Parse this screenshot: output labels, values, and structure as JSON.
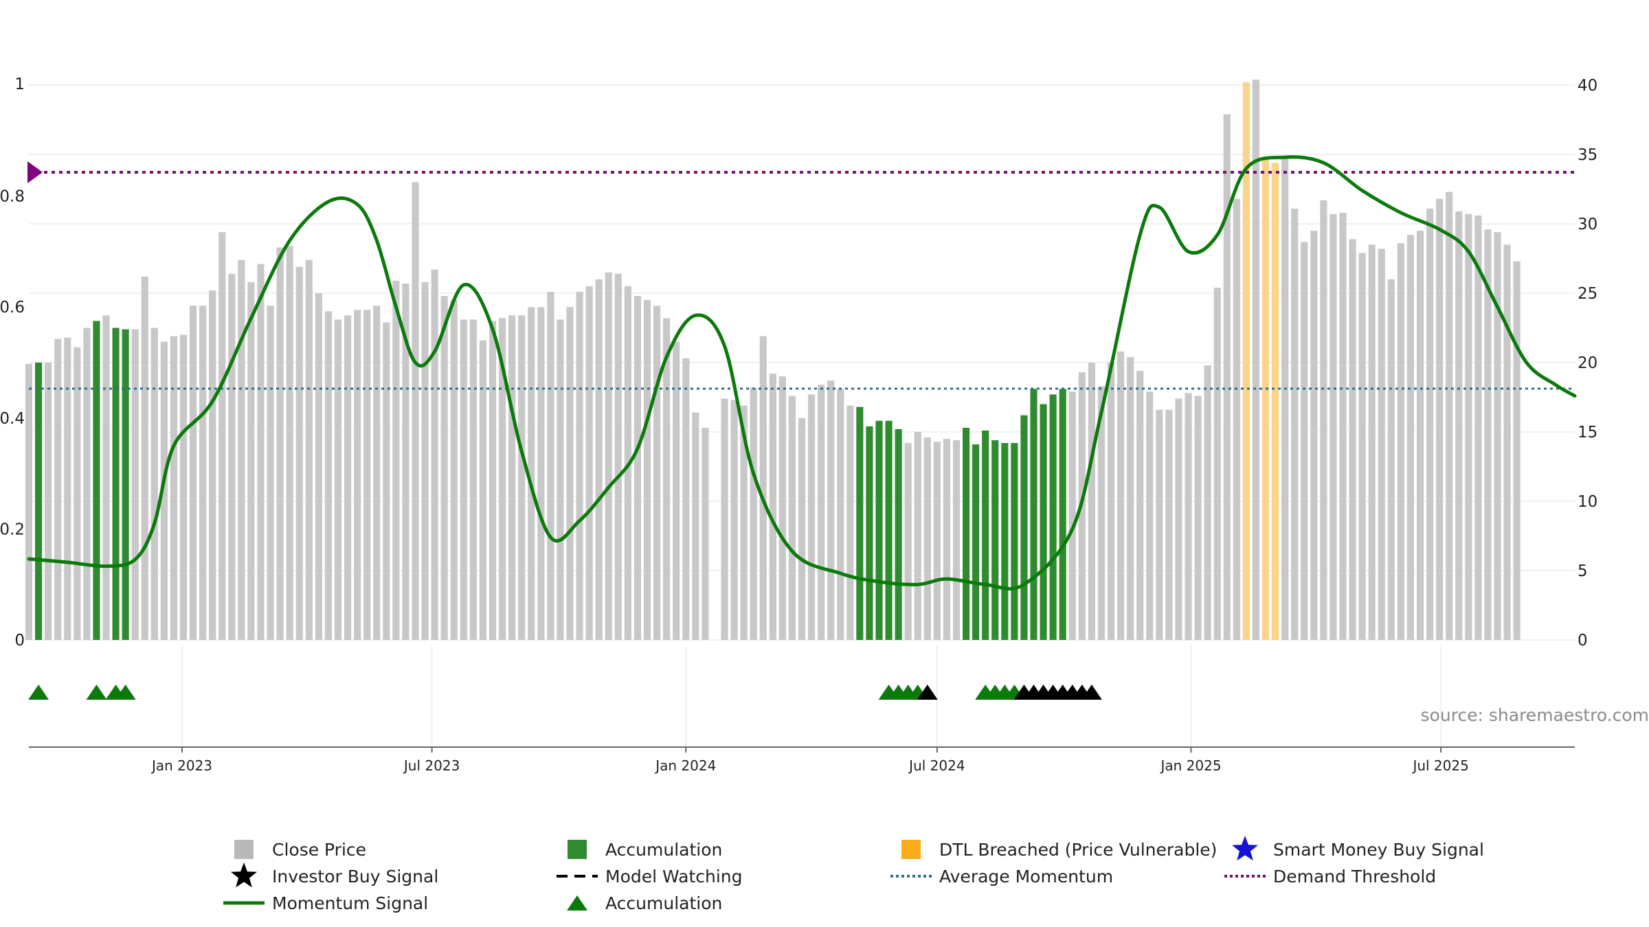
{
  "chart_data": {
    "type": "bar",
    "source_text": "source: sharemaestro.com",
    "y_left": {
      "range": [
        0,
        1
      ],
      "ticks": [
        0,
        0.2,
        0.4,
        0.6,
        0.8,
        1
      ],
      "tick_labels": [
        "0",
        "0.2",
        "0.4",
        "0.6",
        "0.8",
        "1"
      ]
    },
    "y_right": {
      "range": [
        0,
        40
      ],
      "ticks": [
        0,
        5,
        10,
        15,
        20,
        25,
        30,
        35,
        40
      ],
      "tick_labels": [
        "0",
        "5",
        "10",
        "15",
        "20",
        "25",
        "30",
        "35",
        "40"
      ]
    },
    "x_axis": {
      "start": "2022-09-12",
      "end": "2025-10-06",
      "ticks": [
        "2023-01-01",
        "2023-07-01",
        "2024-01-01",
        "2024-07-01",
        "2025-01-01",
        "2025-07-01"
      ],
      "tick_labels": [
        "Jan 2023",
        "Jul 2023",
        "Jan 2024",
        "Jul 2024",
        "Jan 2025",
        "Jul 2025"
      ]
    },
    "grid": true,
    "average_momentum": 0.453,
    "demand_threshold": 0.843,
    "colors": {
      "close_price": "#c8c8c8",
      "accumulation": "#2e8b2e",
      "dtl_breached": "#fcd38a",
      "momentum": "#0b7a0b",
      "average_momentum": "#2f6f8f",
      "demand_threshold": "#6a0f6a",
      "smart_money": "#1414d2",
      "investor_buy": "#000000",
      "accumulation_marker": "#0b7a0b",
      "threshold_marker": "#800080"
    },
    "price_series": {
      "name": "Close Price",
      "start": "2022-09-12",
      "interval_days": 7,
      "values": [
        19.9,
        20.0,
        20.0,
        21.7,
        21.8,
        21.1,
        22.5,
        23.0,
        23.4,
        22.5,
        22.4,
        22.4,
        26.2,
        22.5,
        21.5,
        21.9,
        22.0,
        24.1,
        24.1,
        25.2,
        29.4,
        26.4,
        27.4,
        25.8,
        27.1,
        24.1,
        28.3,
        28.4,
        26.9,
        27.4,
        25.0,
        23.7,
        23.1,
        23.4,
        23.8,
        23.8,
        24.1,
        22.9,
        25.9,
        25.7,
        33.0,
        25.8,
        26.7,
        24.8,
        24.5,
        23.1,
        23.1,
        21.6,
        23.0,
        23.2,
        23.4,
        23.4,
        24.0,
        24.0,
        25.1,
        23.1,
        24.0,
        25.1,
        25.5,
        26.0,
        26.5,
        26.4,
        25.5,
        24.8,
        24.5,
        24.1,
        23.2,
        21.5,
        20.3,
        16.4,
        15.3,
        0,
        17.4,
        17.3,
        16.9,
        18.2,
        21.9,
        19.2,
        19.0,
        17.6,
        16.0,
        17.7,
        18.4,
        18.7,
        18.1,
        16.9,
        16.8,
        15.4,
        15.8,
        15.8,
        15.2,
        14.2,
        15.0,
        14.6,
        14.3,
        14.5,
        14.4,
        15.3,
        14.1,
        15.1,
        14.4,
        14.2,
        14.2,
        16.2,
        18.1,
        17.0,
        17.7,
        18.1,
        17.9,
        19.3,
        20.0,
        18.3,
        20.0,
        20.8,
        20.4,
        19.4,
        17.9,
        16.6,
        16.6,
        17.4,
        17.8,
        17.6,
        19.8,
        25.4,
        37.9,
        31.8,
        40.2,
        40.4,
        34.8,
        34.4,
        34.8,
        31.1,
        28.7,
        29.5,
        31.7,
        30.7,
        30.8,
        28.9,
        27.9,
        28.5,
        28.2,
        26.0,
        28.6,
        29.2,
        29.5,
        31.1,
        31.8,
        32.3,
        30.9,
        30.7,
        30.6,
        29.6,
        29.4,
        28.5,
        27.3
      ],
      "accumulation_flags": [
        0,
        1,
        0,
        0,
        0,
        0,
        0,
        1,
        0,
        1,
        1,
        0,
        0,
        0,
        0,
        0,
        0,
        0,
        0,
        0,
        0,
        0,
        0,
        0,
        0,
        0,
        0,
        0,
        0,
        0,
        0,
        0,
        0,
        0,
        0,
        0,
        0,
        0,
        0,
        0,
        0,
        0,
        0,
        0,
        0,
        0,
        0,
        0,
        0,
        0,
        0,
        0,
        0,
        0,
        0,
        0,
        0,
        0,
        0,
        0,
        0,
        0,
        0,
        0,
        0,
        0,
        0,
        0,
        0,
        0,
        0,
        0,
        0,
        0,
        0,
        0,
        0,
        0,
        0,
        0,
        0,
        0,
        0,
        0,
        0,
        0,
        1,
        1,
        1,
        1,
        1,
        0,
        0,
        0,
        0,
        0,
        0,
        1,
        1,
        1,
        1,
        1,
        1,
        1,
        1,
        1,
        1,
        1,
        0,
        0,
        0,
        0,
        0,
        0,
        0,
        0,
        0,
        0,
        0,
        0,
        0,
        0,
        0,
        0,
        0,
        0,
        0,
        0,
        0,
        0,
        0,
        0,
        0,
        0,
        0,
        0,
        0,
        0,
        0,
        0,
        0,
        0,
        0,
        0,
        0,
        0,
        0,
        0,
        0,
        0,
        0,
        0,
        0,
        0,
        0,
        0,
        0,
        0,
        0
      ],
      "dtl_breached_flags": [
        0,
        0,
        0,
        0,
        0,
        0,
        0,
        0,
        0,
        0,
        0,
        0,
        0,
        0,
        0,
        0,
        0,
        0,
        0,
        0,
        0,
        0,
        0,
        0,
        0,
        0,
        0,
        0,
        0,
        0,
        0,
        0,
        0,
        0,
        0,
        0,
        0,
        0,
        0,
        0,
        0,
        0,
        0,
        0,
        0,
        0,
        0,
        0,
        0,
        0,
        0,
        0,
        0,
        0,
        0,
        0,
        0,
        0,
        0,
        0,
        0,
        0,
        0,
        0,
        0,
        0,
        0,
        0,
        0,
        0,
        0,
        0,
        0,
        0,
        0,
        0,
        0,
        0,
        0,
        0,
        0,
        0,
        0,
        0,
        0,
        0,
        0,
        0,
        0,
        0,
        0,
        0,
        0,
        0,
        0,
        0,
        0,
        0,
        0,
        0,
        0,
        0,
        0,
        0,
        0,
        0,
        0,
        0,
        0,
        0,
        0,
        0,
        0,
        0,
        0,
        0,
        0,
        0,
        0,
        0,
        0,
        0,
        0,
        0,
        0,
        0,
        1,
        0,
        1,
        1,
        0,
        0,
        0,
        0,
        0,
        0,
        0,
        0,
        0,
        0,
        0,
        0,
        0,
        0,
        0,
        0,
        0,
        0,
        0,
        0,
        0,
        0,
        0,
        0,
        0,
        0,
        0,
        0,
        0
      ]
    },
    "momentum_series": {
      "name": "Momentum Signal",
      "points": [
        [
          "2022-09-12",
          0.146
        ],
        [
          "2022-10-10",
          0.14
        ],
        [
          "2022-11-07",
          0.133
        ],
        [
          "2022-11-28",
          0.145
        ],
        [
          "2022-12-12",
          0.21
        ],
        [
          "2022-12-26",
          0.35
        ],
        [
          "2023-01-23",
          0.43
        ],
        [
          "2023-02-20",
          0.58
        ],
        [
          "2023-03-20",
          0.72
        ],
        [
          "2023-04-17",
          0.79
        ],
        [
          "2023-05-08",
          0.785
        ],
        [
          "2023-05-22",
          0.72
        ],
        [
          "2023-06-05",
          0.6
        ],
        [
          "2023-06-19",
          0.5
        ],
        [
          "2023-07-03",
          0.52
        ],
        [
          "2023-07-24",
          0.64
        ],
        [
          "2023-08-14",
          0.56
        ],
        [
          "2023-09-04",
          0.34
        ],
        [
          "2023-09-25",
          0.185
        ],
        [
          "2023-10-16",
          0.215
        ],
        [
          "2023-11-06",
          0.275
        ],
        [
          "2023-11-27",
          0.345
        ],
        [
          "2023-12-18",
          0.51
        ],
        [
          "2024-01-08",
          0.585
        ],
        [
          "2024-01-29",
          0.53
        ],
        [
          "2024-02-19",
          0.3
        ],
        [
          "2024-03-18",
          0.16
        ],
        [
          "2024-04-22",
          0.12
        ],
        [
          "2024-05-20",
          0.105
        ],
        [
          "2024-06-17",
          0.1
        ],
        [
          "2024-07-08",
          0.11
        ],
        [
          "2024-08-05",
          0.1
        ],
        [
          "2024-09-02",
          0.1
        ],
        [
          "2024-10-07",
          0.2
        ],
        [
          "2024-10-28",
          0.41
        ],
        [
          "2024-11-25",
          0.73
        ],
        [
          "2024-12-09",
          0.78
        ],
        [
          "2024-12-30",
          0.7
        ],
        [
          "2025-01-20",
          0.73
        ],
        [
          "2025-02-10",
          0.85
        ],
        [
          "2025-03-10",
          0.87
        ],
        [
          "2025-04-07",
          0.86
        ],
        [
          "2025-05-05",
          0.81
        ],
        [
          "2025-06-02",
          0.77
        ],
        [
          "2025-06-30",
          0.74
        ],
        [
          "2025-07-21",
          0.7
        ],
        [
          "2025-08-11",
          0.6
        ],
        [
          "2025-09-01",
          0.5
        ],
        [
          "2025-09-22",
          0.46
        ],
        [
          "2025-10-06",
          0.44
        ]
      ]
    },
    "accumulation_marker_dates": [
      "2022-09-19",
      "2022-10-31",
      "2022-11-14",
      "2022-11-21",
      "2024-05-27",
      "2024-06-03",
      "2024-06-10",
      "2024-06-17",
      "2024-08-05",
      "2024-08-12",
      "2024-08-19",
      "2024-08-26"
    ],
    "investor_buy_marker_dates": [
      "2024-06-24",
      "2024-09-02",
      "2024-09-09",
      "2024-09-16",
      "2024-09-23",
      "2024-09-30",
      "2024-10-07",
      "2024-10-14",
      "2024-10-21"
    ],
    "legend": {
      "placement": "bottom",
      "items": [
        {
          "key": "close_price",
          "label": "Close Price",
          "symbol": "square"
        },
        {
          "key": "accumulation",
          "label": "Accumulation",
          "symbol": "square"
        },
        {
          "key": "dtl_breached",
          "label": "DTL Breached (Price Vulnerable)",
          "symbol": "square"
        },
        {
          "key": "smart_money",
          "label": "Smart Money Buy Signal",
          "symbol": "star"
        },
        {
          "key": "investor_buy",
          "label": "Investor Buy Signal",
          "symbol": "star"
        },
        {
          "key": "model_watching",
          "label": "Model Watching",
          "symbol": "dash"
        },
        {
          "key": "average_momentum",
          "label": "Average Momentum",
          "symbol": "dotted"
        },
        {
          "key": "demand_threshold",
          "label": "Demand Threshold",
          "symbol": "dotted"
        },
        {
          "key": "momentum",
          "label": "Momentum Signal",
          "symbol": "line"
        },
        {
          "key": "accumulation_marker",
          "label": "Accumulation",
          "symbol": "triangle"
        }
      ]
    }
  }
}
